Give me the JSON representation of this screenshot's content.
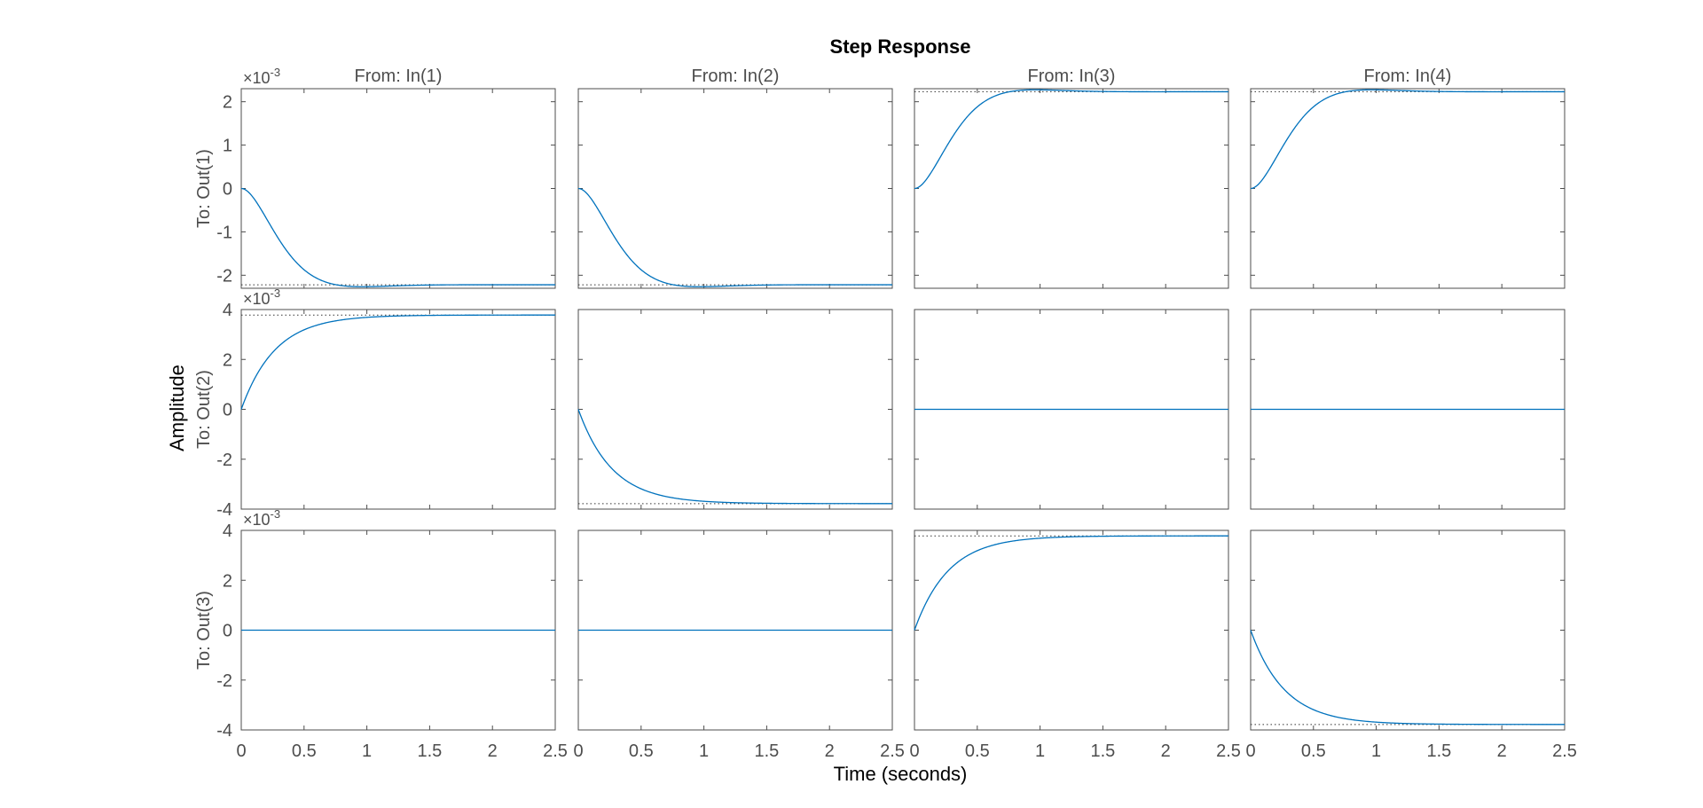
{
  "chart_data": {
    "type": "line",
    "title": "Step Response",
    "xlabel": "Time (seconds)",
    "ylabel": "Amplitude",
    "grid": false,
    "column_titles": [
      "From: In(1)",
      "From: In(2)",
      "From: In(3)",
      "From: In(4)"
    ],
    "row_labels": [
      "To: Out(1)",
      "To: Out(2)",
      "To: Out(3)"
    ],
    "exponent_label": "×10",
    "exponent_power": "-3",
    "xlim": [
      0,
      2.5
    ],
    "xticks": [
      0,
      0.5,
      1,
      1.5,
      2,
      2.5
    ],
    "xtick_labels": [
      "0",
      "0.5",
      "1",
      "1.5",
      "2",
      "2.5"
    ],
    "rows": [
      {
        "ylim": [
          -2.3,
          2.3
        ],
        "yticks": [
          -2,
          -1,
          0,
          1,
          2
        ],
        "ytick_labels": [
          "-2",
          "-1",
          "0",
          "1",
          "2"
        ],
        "scale": "×10^-3"
      },
      {
        "ylim": [
          -4,
          4
        ],
        "yticks": [
          -4,
          -2,
          0,
          2,
          4
        ],
        "ytick_labels": [
          "-4",
          "-2",
          "0",
          "2",
          "4"
        ],
        "scale": "×10^-3"
      },
      {
        "ylim": [
          -4,
          4
        ],
        "yticks": [
          -4,
          -2,
          0,
          2,
          4
        ],
        "ytick_labels": [
          "-4",
          "-2",
          "0",
          "2",
          "4"
        ],
        "scale": "×10^-3"
      }
    ],
    "series": [
      {
        "output": 1,
        "input": 1,
        "kind": "second-order",
        "final": -2.22,
        "overshoot": -2.27,
        "steady_state_line": -2.22
      },
      {
        "output": 1,
        "input": 2,
        "kind": "second-order",
        "final": -2.22,
        "overshoot": -2.27,
        "steady_state_line": -2.22
      },
      {
        "output": 1,
        "input": 3,
        "kind": "second-order",
        "final": 2.23,
        "overshoot": 2.27,
        "steady_state_line": 2.23
      },
      {
        "output": 1,
        "input": 4,
        "kind": "second-order",
        "final": 2.23,
        "overshoot": 2.27,
        "steady_state_line": 2.23
      },
      {
        "output": 2,
        "input": 1,
        "kind": "first-order",
        "final": 3.78,
        "steady_state_line": 3.78
      },
      {
        "output": 2,
        "input": 2,
        "kind": "first-order",
        "final": -3.78,
        "steady_state_line": -3.78
      },
      {
        "output": 2,
        "input": 3,
        "kind": "zero",
        "final": 0
      },
      {
        "output": 2,
        "input": 4,
        "kind": "zero",
        "final": 0
      },
      {
        "output": 3,
        "input": 1,
        "kind": "zero",
        "final": 0
      },
      {
        "output": 3,
        "input": 2,
        "kind": "zero",
        "final": 0
      },
      {
        "output": 3,
        "input": 3,
        "kind": "first-order",
        "final": 3.78,
        "steady_state_line": 3.78
      },
      {
        "output": 3,
        "input": 4,
        "kind": "first-order",
        "final": -3.78,
        "steady_state_line": -3.78
      }
    ],
    "colors": {
      "line": "#0072BD",
      "steady_state": "#333333",
      "axes": "#4d4d4d",
      "text": "#4d4d4d",
      "title": "#000000"
    }
  }
}
